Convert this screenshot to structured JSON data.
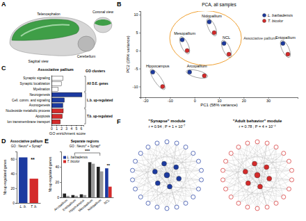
{
  "panel_labels": [
    "A",
    "B",
    "C",
    "D",
    "E",
    "F"
  ],
  "diagram_a": {
    "texts": [
      "Telencephalon",
      "Cerebellum",
      "Sagittal view",
      "Coronal view"
    ]
  },
  "chart_data": [
    {
      "type": "scatter",
      "title": "PCA, all samples",
      "x_label": "PC1 (58% variance)",
      "y_label": "PC2 (18% variance)",
      "xlim": [
        -22,
        42
      ],
      "xticks": [
        -20,
        -10,
        0,
        10,
        20,
        30
      ],
      "ylim": [
        -13,
        11
      ],
      "yticks": [
        -10,
        -5,
        0,
        5,
        10
      ],
      "point_labels": [
        "Nidopallium",
        "Mesopallium",
        "NCL",
        "Arcopallium",
        "Hippocampus",
        "Entopallium"
      ],
      "annotations": [
        {
          "text": "Associative pallium"
        }
      ],
      "legend": "top-right",
      "marker": "circle",
      "series": [
        {
          "name": "L. barbadensis",
          "color": "#1c3aa0",
          "x": [
            6,
            -5,
            12,
            -2,
            -17,
            36
          ],
          "values": [
            8,
            3,
            2,
            -6,
            -6,
            2
          ]
        },
        {
          "name": "T. bicolor",
          "color": "#d42a2a",
          "x": [
            8,
            -3,
            14,
            4,
            -13,
            38
          ],
          "values": [
            5,
            0,
            -1,
            -7,
            -10,
            -1
          ]
        }
      ]
    },
    {
      "type": "bar",
      "orientation": "horizontal",
      "title": "Associative pallium",
      "x_label": "GO enrichment score",
      "y_label": "GO clusters",
      "categories": [
        "Synaptic signaling",
        "Synaptic localization",
        "Myelination",
        "Neurogenesis",
        "Cell. comm. and signaling",
        "Axonogenesis",
        "Nucleoside metabolic process",
        "Apoptosis",
        "Ion transmembrane transport"
      ],
      "values": [
        2.3,
        2.0,
        1.3,
        6.2,
        2.6,
        2.3,
        2.4,
        2.2,
        1.8
      ],
      "colors": [
        "#ffffff",
        "#ffffff",
        "#ffffff",
        "#1c3aa0",
        "#1c3aa0",
        "#1c3aa0",
        "#d42a2a",
        "#d42a2a",
        "#d42a2a"
      ],
      "group_labels": [
        "All D.E. genes",
        "L.b. up-regulated",
        "T.b. up-regulated"
      ],
      "xlim": [
        0,
        6.5
      ],
      "xticks": [
        0,
        1,
        2,
        3,
        4,
        5,
        6
      ]
    },
    {
      "type": "bar",
      "title": "Associative pallium",
      "subtitle": "GO : Neuro* + Synap*",
      "y_label": "Nb up-regulated genes",
      "categories": [
        "L. b.",
        "T. b."
      ],
      "values": [
        62,
        33
      ],
      "colors": [
        "#1c3aa0",
        "#d42a2a"
      ],
      "ylim": [
        0,
        70
      ],
      "yticks": [
        0,
        20,
        40,
        60
      ],
      "annotations": [
        {
          "text": "**"
        }
      ]
    },
    {
      "type": "bar",
      "title": "Separate regions",
      "subtitle": "GO : Neuro* + Synap*",
      "y_label": "Nb up-regulated genes",
      "categories": [
        "Arcopallium",
        "Entopallium",
        "Hippocampus",
        "Mesopallium",
        "Nidopallium",
        "NCL"
      ],
      "series": [
        {
          "name": "L. barbadensis",
          "color": "#1c3aa0",
          "colors": [
            "#222222",
            "#222222",
            "#222222",
            "#222222",
            "#222222",
            "#1c3aa0"
          ],
          "values": [
            5,
            3,
            4,
            46,
            40,
            38
          ]
        },
        {
          "name": "T. bicolor",
          "color": "#d42a2a",
          "colors": [
            "#9a9a9a",
            "#9a9a9a",
            "#9a9a9a",
            "#9a9a9a",
            "#9a9a9a",
            "#d42a2a"
          ],
          "values": [
            2,
            2,
            3,
            44,
            34,
            14
          ]
        }
      ],
      "ylim": [
        0,
        60
      ],
      "yticks": [
        0,
        20,
        40
      ],
      "legend": "top-left",
      "annotations": [
        {
          "text": "***"
        },
        {
          "text": "**"
        }
      ]
    }
  ],
  "network_f": {
    "modules": [
      {
        "title": "\"Synapse\" module",
        "stats": "r = 0.94 ; P = 1 × 10⁻⁷",
        "color": "#1c3aa0"
      },
      {
        "title": "\"Adult behavior\" module",
        "stats": "r = 0.78 ; P = 4 × 10⁻⁴",
        "color": "#d42a2a"
      }
    ]
  }
}
